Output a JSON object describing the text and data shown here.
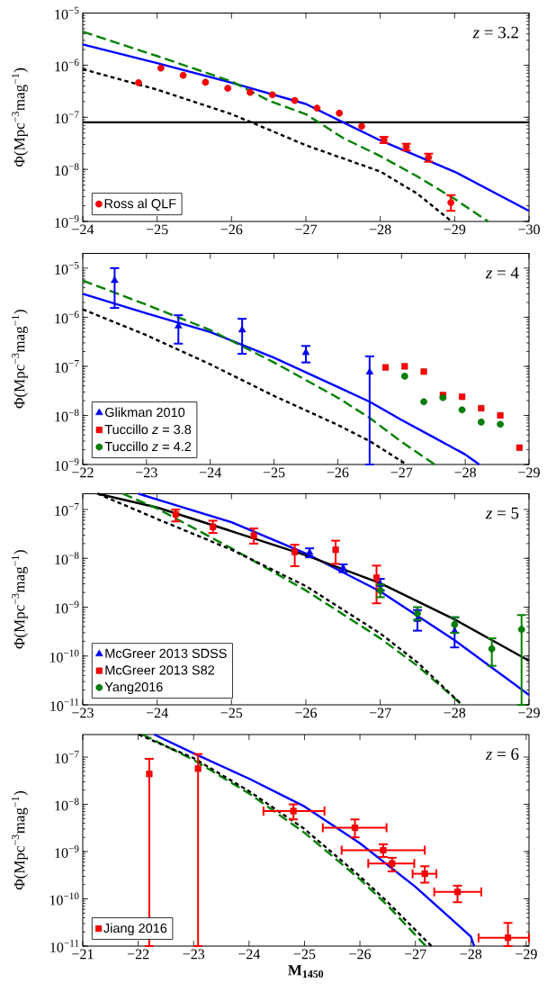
{
  "chart_data": [
    {
      "type": "line",
      "xlim": [
        -24,
        -30
      ],
      "ylim": [
        1e-09,
        1e-05
      ],
      "log": "y",
      "xticks": [
        {
          "value": -24,
          "label": "−24"
        },
        {
          "value": -25,
          "label": "−25"
        },
        {
          "value": -26,
          "label": "−26"
        },
        {
          "value": -27,
          "label": "−27"
        },
        {
          "value": -28,
          "label": "−28"
        },
        {
          "value": -29,
          "label": "−29"
        },
        {
          "value": -30,
          "label": "−30"
        }
      ],
      "yticks": [
        {
          "value": 1e-09,
          "label": "10$^{−9}$"
        },
        {
          "value": 1e-08,
          "label": "10$^{−8}$"
        },
        {
          "value": 1e-07,
          "label": "10$^{−7}$"
        },
        {
          "value": 1e-06,
          "label": "10$^{−6}$"
        },
        {
          "value": 1e-05,
          "label": "10$^{−5}$"
        }
      ],
      "ylabel": "Φ(Mpc$^{−3}$mag$^{−1}$)",
      "annotations": [
        "*z* = 3.2"
      ],
      "legend": "bottom left",
      "ref_lines": [
        {
          "axis": "y",
          "value": 8e-08,
          "color": "#000000"
        }
      ],
      "series": [
        {
          "color": "#0000ff",
          "line_style": "solid",
          "x": [
            -24,
            -25,
            -26,
            -27,
            -27.5,
            -28,
            -29,
            -30
          ],
          "values": [
            2.5e-06,
            1.1e-06,
            4.6e-07,
            1.8e-07,
            8e-08,
            3.6e-08,
            9e-09,
            1.6e-09
          ]
        },
        {
          "color": "#008000",
          "line_style": "dashed",
          "x": [
            -24,
            -25,
            -26,
            -26.5,
            -27,
            -27.5,
            -28,
            -28.5,
            -29,
            -29.45
          ],
          "values": [
            4.4e-06,
            1.5e-06,
            4.9e-07,
            2.1e-07,
            1.15e-07,
            4e-08,
            1.8e-08,
            7.3e-09,
            2.7e-09,
            1e-09
          ]
        },
        {
          "color": "#000000",
          "line_style": "dotted",
          "x": [
            -24,
            -25,
            -26,
            -26.5,
            -27,
            -28,
            -28.5,
            -28.96
          ],
          "values": [
            8.4e-07,
            3.4e-07,
            1.15e-07,
            5.8e-08,
            2.9e-08,
            9.1e-09,
            3.4e-09,
            1e-09
          ]
        },
        {
          "type": "scatter",
          "name": "Ross al QLF",
          "color": "#ff0000",
          "marker": "circle",
          "x": [
            -24.75,
            -25.05,
            -25.35,
            -25.65,
            -25.95,
            -26.25,
            -26.55,
            -26.85,
            -27.15,
            -27.45,
            -27.75,
            -28.05,
            -28.35,
            -28.65,
            -28.95
          ],
          "values": [
            4.6e-07,
            8.8e-07,
            6.4e-07,
            4.7e-07,
            3.6e-07,
            3e-07,
            2.7e-07,
            2.1e-07,
            1.5e-07,
            1.2e-07,
            6.7e-08,
            3.7e-08,
            2.7e-08,
            1.7e-08,
            2.3e-09
          ],
          "errors": [
            null,
            null,
            null,
            null,
            null,
            null,
            null,
            null,
            null,
            null,
            null,
            [
              3.2e-08,
              4.2e-08
            ],
            [
              2.3e-08,
              3.1e-08
            ],
            [
              1.4e-08,
              2e-08
            ],
            [
              1.6e-09,
              3.2e-09
            ]
          ]
        }
      ]
    },
    {
      "type": "line",
      "xlim": [
        -22,
        -29
      ],
      "ylim": [
        1e-09,
        2e-05
      ],
      "log": "y",
      "xticks": [
        {
          "value": -22,
          "label": "−22"
        },
        {
          "value": -23,
          "label": "−23"
        },
        {
          "value": -24,
          "label": "−24"
        },
        {
          "value": -25,
          "label": "−25"
        },
        {
          "value": -26,
          "label": "−26"
        },
        {
          "value": -27,
          "label": "−27"
        },
        {
          "value": -28,
          "label": "−28"
        },
        {
          "value": -29,
          "label": "−29"
        }
      ],
      "yticks": [
        {
          "value": 1e-09,
          "label": "10$^{−9}$"
        },
        {
          "value": 1e-08,
          "label": "10$^{−8}$"
        },
        {
          "value": 1e-07,
          "label": "10$^{−7}$"
        },
        {
          "value": 1e-06,
          "label": "10$^{−6}$"
        },
        {
          "value": 1e-05,
          "label": "10$^{−5}$"
        }
      ],
      "ylabel": "Φ(Mpc$^{−3}$mag$^{−1}$)",
      "annotations": [
        "*z* = 4"
      ],
      "legend": "bottom left",
      "series": [
        {
          "color": "#0000ff",
          "line_style": "solid",
          "x": [
            -22,
            -23,
            -24,
            -25,
            -26,
            -26.5,
            -27,
            -27.5,
            -28,
            -28.22
          ],
          "values": [
            3e-06,
            1.2e-06,
            5e-07,
            1.5e-07,
            3.8e-08,
            1.9e-08,
            8.1e-09,
            3.6e-09,
            1.6e-09,
            1e-09
          ]
        },
        {
          "color": "#008000",
          "line_style": "dashed",
          "x": [
            -22,
            -23,
            -24,
            -25,
            -26,
            -26.5,
            -27,
            -27.52
          ],
          "values": [
            5.6e-06,
            1.8e-06,
            5.5e-07,
            1.2e-07,
            2.3e-08,
            8.9e-09,
            2.9e-09,
            1e-09
          ]
        },
        {
          "color": "#000000",
          "line_style": "dotted",
          "x": [
            -22,
            -23,
            -24,
            -25,
            -26,
            -26.5,
            -27.08
          ],
          "values": [
            1.45e-06,
            4.3e-07,
            1.1e-07,
            2.5e-08,
            6.4e-09,
            3e-09,
            1e-09
          ]
        },
        {
          "type": "scatter",
          "name": "Glikman 2010",
          "color": "#0000ff",
          "marker": "triangle",
          "x": [
            -22.5,
            -23.5,
            -24.5,
            -25.5,
            -26.5
          ],
          "values": [
            5.6e-06,
            6.6e-07,
            5.5e-07,
            1.9e-07,
            7.6e-08
          ],
          "errors": [
            [
              1.55e-06,
              1e-05
            ],
            [
              2.9e-07,
              1.1e-06
            ],
            [
              1.8e-07,
              9.3e-07
            ],
            [
              1.2e-07,
              2.6e-07
            ],
            [
              1e-09,
              1.6e-07
            ]
          ]
        },
        {
          "type": "scatter",
          "name": "Tuccillo *z* = 3.8",
          "color": "#ff0000",
          "marker": "square",
          "x": [
            -26.75,
            -27.05,
            -27.35,
            -27.65,
            -27.95,
            -28.25,
            -28.55,
            -28.85
          ],
          "values": [
            9.5e-08,
            1e-07,
            7.8e-08,
            2.6e-08,
            2.4e-08,
            1.4e-08,
            1e-08,
            2.2e-09
          ]
        },
        {
          "type": "scatter",
          "name": "Tuccillo *z* = 4.2",
          "color": "#008000",
          "marker": "circle",
          "x": [
            -27.05,
            -27.35,
            -27.65,
            -27.95,
            -28.25,
            -28.55
          ],
          "values": [
            6.3e-08,
            1.9e-08,
            2.3e-08,
            1.3e-08,
            7.3e-09,
            6.6e-09
          ]
        }
      ]
    },
    {
      "type": "line",
      "xlim": [
        -23,
        -29
      ],
      "ylim": [
        1e-11,
        2.1e-07
      ],
      "log": "y",
      "xticks": [
        {
          "value": -23,
          "label": "−23"
        },
        {
          "value": -24,
          "label": "−24"
        },
        {
          "value": -25,
          "label": "−25"
        },
        {
          "value": -26,
          "label": "−26"
        },
        {
          "value": -27,
          "label": "−27"
        },
        {
          "value": -28,
          "label": "−28"
        },
        {
          "value": -29,
          "label": "−29"
        }
      ],
      "yticks": [
        {
          "value": 1e-11,
          "label": "10$^{−11}$"
        },
        {
          "value": 1e-10,
          "label": "10$^{−10}$"
        },
        {
          "value": 1e-09,
          "label": "10$^{−9}$"
        },
        {
          "value": 1e-08,
          "label": "10$^{−8}$"
        },
        {
          "value": 1e-07,
          "label": "10$^{−7}$"
        }
      ],
      "ylabel": "Φ(Mpc$^{−3}$mag$^{−1}$)",
      "annotations": [
        "*z* = 5"
      ],
      "legend": "bottom left",
      "series": [
        {
          "color": "#0000ff",
          "line_style": "solid",
          "x": [
            -23.75,
            -24,
            -25,
            -26,
            -27,
            -28,
            -29
          ],
          "values": [
            2.1e-07,
            1.6e-07,
            5.5e-08,
            1.26e-08,
            2.1e-09,
            2.1e-10,
            1.6e-11
          ]
        },
        {
          "color": "#000000",
          "line_style": "solid",
          "x": [
            -23.2,
            -24,
            -25,
            -26,
            -27,
            -28,
            -29
          ],
          "values": [
            2.1e-07,
            1.1e-07,
            3.6e-08,
            1.15e-08,
            3.1e-09,
            5.6e-10,
            8e-11
          ]
        },
        {
          "color": "#008000",
          "line_style": "dashed",
          "x": [
            -23.54,
            -24,
            -25,
            -26,
            -27,
            -27.5,
            -28.1
          ],
          "values": [
            2.1e-07,
            1.05e-07,
            1.6e-08,
            2.2e-09,
            2.3e-10,
            6.3e-11,
            1e-11
          ]
        },
        {
          "color": "#000000",
          "line_style": "dotted",
          "x": [
            -23.2,
            -24,
            -25,
            -26,
            -27,
            -27.5,
            -28.1
          ],
          "values": [
            2.1e-07,
            6.4e-08,
            1.5e-08,
            2.7e-09,
            2.9e-10,
            7.4e-11,
            1e-11
          ]
        },
        {
          "type": "scatter",
          "name": "McGreer 2013 SDSS",
          "color": "#0000ff",
          "marker": "triangle",
          "x": [
            -26.05,
            -26.5,
            -27.0,
            -27.5,
            -28.0
          ],
          "values": [
            1.3e-08,
            6.3e-09,
            2.9e-09,
            5.6e-10,
            3.2e-10
          ],
          "errors": [
            [
              1.05e-08,
              1.6e-08
            ],
            [
              5.2e-09,
              7.5e-09
            ],
            [
              2.2e-09,
              3.8e-09
            ],
            [
              3.3e-10,
              8.7e-10
            ],
            [
              1.5e-10,
              6.2e-10
            ]
          ]
        },
        {
          "type": "scatter",
          "name": "McGreer 2013 S82",
          "color": "#ff0000",
          "marker": "square",
          "x": [
            -24.25,
            -24.75,
            -25.3,
            -25.85,
            -26.4,
            -26.95
          ],
          "values": [
            8e-08,
            4.4e-08,
            2.9e-08,
            1.35e-08,
            1.5e-08,
            4e-09
          ],
          "errors": [
            [
              5.7e-08,
              1e-07
            ],
            [
              3.3e-08,
              5.9e-08
            ],
            [
              2e-08,
              4.1e-08
            ],
            [
              6.9e-09,
              1.9e-08
            ],
            [
              7.7e-09,
              2.3e-08
            ],
            [
              1.2e-09,
              7.1e-09
            ]
          ]
        },
        {
          "type": "scatter",
          "name": "Yang2016",
          "color": "#008000",
          "marker": "circle",
          "x": [
            -27.0,
            -27.5,
            -28.0,
            -28.5,
            -28.9
          ],
          "values": [
            2.2e-09,
            7.4e-10,
            4.4e-10,
            1.4e-10,
            3.5e-10
          ],
          "errors": [
            [
              1.6e-09,
              2.9e-09
            ],
            [
              5.5e-10,
              1e-09
            ],
            [
              3e-10,
              6.2e-10
            ],
            [
              6.3e-11,
              2.3e-10
            ],
            [
              1e-11,
              6.9e-10
            ]
          ]
        }
      ]
    },
    {
      "type": "line",
      "xlim": [
        -21,
        -29.05
      ],
      "ylim": [
        1e-11,
        3e-07
      ],
      "log": "y",
      "xticks": [
        {
          "value": -21,
          "label": "−21"
        },
        {
          "value": -22,
          "label": "−22"
        },
        {
          "value": -23,
          "label": "−23"
        },
        {
          "value": -24,
          "label": "−24"
        },
        {
          "value": -25,
          "label": "−25"
        },
        {
          "value": -26,
          "label": "−26"
        },
        {
          "value": -27,
          "label": "−27"
        },
        {
          "value": -28,
          "label": "−28"
        },
        {
          "value": -29,
          "label": "−29"
        }
      ],
      "yticks": [
        {
          "value": 1e-11,
          "label": "10$^{−11}$"
        },
        {
          "value": 1e-10,
          "label": "10$^{−10}$"
        },
        {
          "value": 1e-09,
          "label": "10$^{−9}$"
        },
        {
          "value": 1e-08,
          "label": "10$^{−8}$"
        },
        {
          "value": 1e-07,
          "label": "10$^{−7}$"
        }
      ],
      "xlabel": "M$_{1450}$",
      "ylabel": "Φ(Mpc$^{−3}$mag$^{−1}$)",
      "annotations": [
        "*z* = 6"
      ],
      "legend": "bottom left",
      "series": [
        {
          "color": "#0000ff",
          "line_style": "solid",
          "x": [
            -22.29,
            -23,
            -24,
            -25,
            -26,
            -27,
            -28,
            -28.06
          ],
          "values": [
            3e-07,
            1.2e-07,
            3.5e-08,
            9e-09,
            1.5e-09,
            1.8e-10,
            1.6e-11,
            1e-11
          ]
        },
        {
          "color": "#008000",
          "line_style": "dashed",
          "x": [
            -22.08,
            -23,
            -24,
            -25,
            -26,
            -26.5,
            -27.19
          ],
          "values": [
            3e-07,
            8.7e-08,
            1.7e-08,
            2.5e-09,
            2.6e-10,
            7.2e-11,
            1e-11
          ]
        },
        {
          "color": "#000000",
          "line_style": "dotted",
          "x": [
            -22.01,
            -23,
            -24,
            -25,
            -26,
            -26.5,
            -27.29
          ],
          "values": [
            3e-07,
            9.5e-08,
            1.9e-08,
            3e-09,
            3e-10,
            8.5e-11,
            1e-11
          ]
        },
        {
          "type": "scatter",
          "name": "Jiang 2016",
          "color": "#ff0000",
          "marker": "square",
          "x": [
            -22.2,
            -23.08,
            -24.8,
            -25.91,
            -26.42,
            -26.58,
            -27.17,
            -27.76,
            -28.67
          ],
          "values": [
            4.4e-08,
            5.7e-08,
            7.2e-09,
            3.2e-09,
            1.07e-09,
            5.6e-10,
            3.4e-10,
            1.4e-10,
            1.5e-11
          ],
          "errors": [
            [
              1e-11,
              9.2e-08
            ],
            [
              1e-11,
              1.16e-07
            ],
            [
              4.8e-09,
              1e-08
            ],
            [
              2e-09,
              4.8e-09
            ],
            [
              7.7e-10,
              1.43e-09
            ],
            [
              3.8e-10,
              7.4e-10
            ],
            [
              2.2e-10,
              4.9e-10
            ],
            [
              8.5e-11,
              1.9e-10
            ],
            [
              1e-11,
              3.1e-11
            ]
          ],
          "xerrors": [
            null,
            null,
            [
              -25.36,
              -24.26
            ],
            [
              -26.48,
              -25.33
            ],
            [
              -27.17,
              -25.67
            ],
            [
              -26.98,
              -26.15
            ],
            [
              -27.38,
              -26.95
            ],
            [
              -28.19,
              -27.34
            ],
            [
              -29.05,
              -28.14
            ]
          ]
        }
      ]
    }
  ]
}
